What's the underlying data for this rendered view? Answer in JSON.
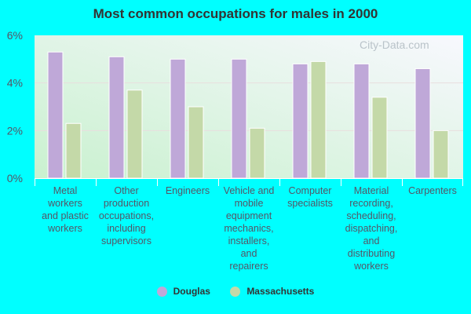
{
  "chart_data": {
    "type": "bar",
    "title": "Most common occupations for males in 2000",
    "categories": [
      [
        "Metal",
        "workers",
        "and plastic",
        "workers"
      ],
      [
        "Other",
        "production",
        "occupations,",
        "including",
        "supervisors"
      ],
      [
        "Engineers"
      ],
      [
        "Vehicle and",
        "mobile",
        "equipment",
        "mechanics,",
        "installers,",
        "and",
        "repairers"
      ],
      [
        "Computer",
        "specialists"
      ],
      [
        "Material",
        "recording,",
        "scheduling,",
        "dispatching,",
        "and",
        "distributing",
        "workers"
      ],
      [
        "Carpenters"
      ]
    ],
    "series": [
      {
        "name": "Douglas",
        "color": "#bfa8d8",
        "values": [
          5.3,
          5.1,
          5.0,
          5.0,
          4.8,
          4.8,
          4.6
        ]
      },
      {
        "name": "Massachusetts",
        "color": "#c4d9a8",
        "values": [
          2.3,
          3.7,
          3.0,
          2.1,
          4.9,
          3.4,
          2.0
        ]
      }
    ],
    "ylim": [
      0,
      6
    ],
    "yticks": [
      "0%",
      "2%",
      "4%",
      "6%"
    ],
    "grid": true,
    "legend": "bottom",
    "watermark": "City-Data.com"
  }
}
